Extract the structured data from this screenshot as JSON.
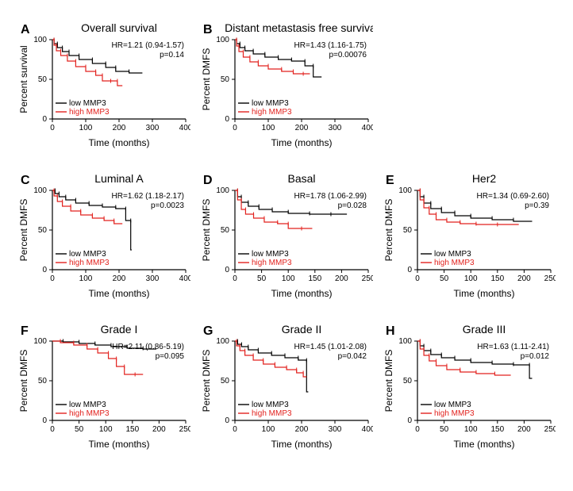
{
  "colors": {
    "low": "#000000",
    "high": "#e2221e",
    "axis": "#000000",
    "bg": "#ffffff",
    "text": "#000000"
  },
  "xaxis": {
    "label": "Time (months)",
    "max_default": 400,
    "ticks_default": [
      0,
      100,
      200,
      300,
      400
    ],
    "max_250": 250,
    "ticks_250": [
      0,
      50,
      100,
      150,
      200,
      250
    ]
  },
  "yaxis": {
    "max": 100,
    "ticks": [
      0,
      50,
      100
    ]
  },
  "fontsize": {
    "title": 14,
    "axis_label": 12,
    "tick": 10,
    "legend": 10,
    "hr": 10,
    "panel_letter": 16
  },
  "line_width": 1.2,
  "panels": [
    {
      "letter": "A",
      "title": "Overall survival",
      "ylabel": "Percent survival",
      "hr": "HR=1.21 (0.94-1.57)",
      "p": "p=0.14",
      "xmax": 400,
      "xticks": [
        0,
        100,
        200,
        300,
        400
      ],
      "low_curve": [
        [
          0,
          100
        ],
        [
          5,
          95
        ],
        [
          15,
          90
        ],
        [
          30,
          85
        ],
        [
          50,
          80
        ],
        [
          80,
          75
        ],
        [
          120,
          70
        ],
        [
          160,
          65
        ],
        [
          190,
          60
        ],
        [
          230,
          58
        ],
        [
          270,
          58
        ]
      ],
      "high_curve": [
        [
          0,
          100
        ],
        [
          5,
          93
        ],
        [
          12,
          86
        ],
        [
          25,
          80
        ],
        [
          45,
          73
        ],
        [
          70,
          66
        ],
        [
          100,
          60
        ],
        [
          130,
          55
        ],
        [
          150,
          48
        ],
        [
          175,
          48
        ],
        [
          195,
          42
        ],
        [
          210,
          42
        ]
      ]
    },
    {
      "letter": "B",
      "title": "Distant metastasis free survival",
      "ylabel": "Percent DMFS",
      "hr": "HR=1.43 (1.16-1.75)",
      "p": "p=0.00076",
      "xmax": 400,
      "xticks": [
        0,
        100,
        200,
        300,
        400
      ],
      "low_curve": [
        [
          0,
          100
        ],
        [
          5,
          95
        ],
        [
          15,
          90
        ],
        [
          30,
          86
        ],
        [
          55,
          82
        ],
        [
          90,
          78
        ],
        [
          130,
          75
        ],
        [
          170,
          73
        ],
        [
          210,
          67
        ],
        [
          235,
          53
        ],
        [
          260,
          53
        ]
      ],
      "high_curve": [
        [
          0,
          100
        ],
        [
          5,
          92
        ],
        [
          12,
          85
        ],
        [
          25,
          78
        ],
        [
          45,
          72
        ],
        [
          70,
          67
        ],
        [
          100,
          63
        ],
        [
          140,
          60
        ],
        [
          175,
          57
        ],
        [
          205,
          57
        ],
        [
          225,
          57
        ]
      ]
    },
    {
      "letter": "C",
      "title": "Luminal A",
      "ylabel": "Percent DMFS",
      "hr": "HR=1.62 (1.18-2.17)",
      "p": "p=0.0023",
      "xmax": 400,
      "xticks": [
        0,
        100,
        200,
        300,
        400
      ],
      "low_curve": [
        [
          0,
          100
        ],
        [
          8,
          96
        ],
        [
          20,
          92
        ],
        [
          40,
          88
        ],
        [
          70,
          84
        ],
        [
          110,
          81
        ],
        [
          150,
          79
        ],
        [
          190,
          77
        ],
        [
          220,
          62
        ],
        [
          235,
          25
        ],
        [
          238,
          25
        ]
      ],
      "high_curve": [
        [
          0,
          100
        ],
        [
          5,
          93
        ],
        [
          15,
          86
        ],
        [
          30,
          80
        ],
        [
          55,
          74
        ],
        [
          85,
          69
        ],
        [
          120,
          65
        ],
        [
          155,
          62
        ],
        [
          185,
          58
        ],
        [
          210,
          58
        ]
      ]
    },
    {
      "letter": "D",
      "title": "Basal",
      "ylabel": "Percent DMFS",
      "hr": "HR=1.78 (1.06-2.99)",
      "p": "p=0.028",
      "xmax": 250,
      "xticks": [
        0,
        50,
        100,
        150,
        200,
        250
      ],
      "low_curve": [
        [
          0,
          100
        ],
        [
          5,
          92
        ],
        [
          12,
          85
        ],
        [
          25,
          80
        ],
        [
          45,
          76
        ],
        [
          70,
          73
        ],
        [
          100,
          71
        ],
        [
          140,
          70
        ],
        [
          180,
          70
        ],
        [
          210,
          70
        ]
      ],
      "high_curve": [
        [
          0,
          100
        ],
        [
          5,
          88
        ],
        [
          12,
          76
        ],
        [
          20,
          70
        ],
        [
          35,
          65
        ],
        [
          55,
          60
        ],
        [
          80,
          58
        ],
        [
          100,
          52
        ],
        [
          125,
          52
        ],
        [
          145,
          52
        ]
      ]
    },
    {
      "letter": "E",
      "title": "Her2",
      "ylabel": "Percent DMFS",
      "hr": "HR=1.34 (0.69-2.60)",
      "p": "p=0.39",
      "xmax": 250,
      "xticks": [
        0,
        50,
        100,
        150,
        200,
        250
      ],
      "low_curve": [
        [
          0,
          100
        ],
        [
          5,
          92
        ],
        [
          12,
          84
        ],
        [
          25,
          77
        ],
        [
          45,
          72
        ],
        [
          70,
          68
        ],
        [
          100,
          65
        ],
        [
          140,
          63
        ],
        [
          180,
          61
        ],
        [
          215,
          61
        ]
      ],
      "high_curve": [
        [
          0,
          100
        ],
        [
          5,
          88
        ],
        [
          12,
          78
        ],
        [
          22,
          70
        ],
        [
          35,
          63
        ],
        [
          55,
          60
        ],
        [
          80,
          58
        ],
        [
          110,
          57
        ],
        [
          150,
          57
        ],
        [
          190,
          57
        ]
      ]
    },
    {
      "letter": "F",
      "title": "Grade I",
      "ylabel": "Percent DMFS",
      "hr": "HR=2.11 (0.86-5.19)",
      "p": "p=0.095",
      "xmax": 250,
      "xticks": [
        0,
        50,
        100,
        150,
        200,
        250
      ],
      "low_curve": [
        [
          0,
          100
        ],
        [
          20,
          99
        ],
        [
          50,
          97
        ],
        [
          80,
          95
        ],
        [
          110,
          93
        ],
        [
          140,
          91
        ],
        [
          170,
          90
        ],
        [
          195,
          90
        ]
      ],
      "high_curve": [
        [
          0,
          100
        ],
        [
          15,
          98
        ],
        [
          40,
          95
        ],
        [
          65,
          90
        ],
        [
          85,
          85
        ],
        [
          105,
          78
        ],
        [
          120,
          68
        ],
        [
          135,
          58
        ],
        [
          155,
          58
        ],
        [
          170,
          58
        ]
      ]
    },
    {
      "letter": "G",
      "title": "Grade II",
      "ylabel": "Percent DMFS",
      "hr": "HR=1.45 (1.01-2.08)",
      "p": "p=0.042",
      "xmax": 400,
      "xticks": [
        0,
        100,
        200,
        300,
        400
      ],
      "low_curve": [
        [
          0,
          100
        ],
        [
          8,
          96
        ],
        [
          20,
          93
        ],
        [
          40,
          89
        ],
        [
          70,
          85
        ],
        [
          110,
          82
        ],
        [
          150,
          79
        ],
        [
          190,
          76
        ],
        [
          215,
          36
        ],
        [
          220,
          36
        ]
      ],
      "high_curve": [
        [
          0,
          100
        ],
        [
          5,
          94
        ],
        [
          15,
          88
        ],
        [
          30,
          82
        ],
        [
          55,
          76
        ],
        [
          85,
          71
        ],
        [
          120,
          67
        ],
        [
          155,
          64
        ],
        [
          185,
          60
        ],
        [
          205,
          55
        ],
        [
          215,
          55
        ]
      ]
    },
    {
      "letter": "H",
      "title": "Grade III",
      "ylabel": "Percent DMFS",
      "hr": "HR=1.63 (1.11-2.41)",
      "p": "p=0.012",
      "xmax": 250,
      "xticks": [
        0,
        50,
        100,
        150,
        200,
        250
      ],
      "low_curve": [
        [
          0,
          100
        ],
        [
          5,
          94
        ],
        [
          12,
          88
        ],
        [
          25,
          83
        ],
        [
          45,
          79
        ],
        [
          70,
          76
        ],
        [
          100,
          73
        ],
        [
          140,
          71
        ],
        [
          180,
          70
        ],
        [
          210,
          53
        ],
        [
          215,
          53
        ]
      ],
      "high_curve": [
        [
          0,
          100
        ],
        [
          5,
          90
        ],
        [
          12,
          82
        ],
        [
          22,
          75
        ],
        [
          35,
          69
        ],
        [
          55,
          64
        ],
        [
          80,
          61
        ],
        [
          110,
          59
        ],
        [
          145,
          57
        ],
        [
          175,
          57
        ]
      ]
    }
  ],
  "legend": {
    "low": "low MMP3",
    "high": "high MMP3"
  }
}
